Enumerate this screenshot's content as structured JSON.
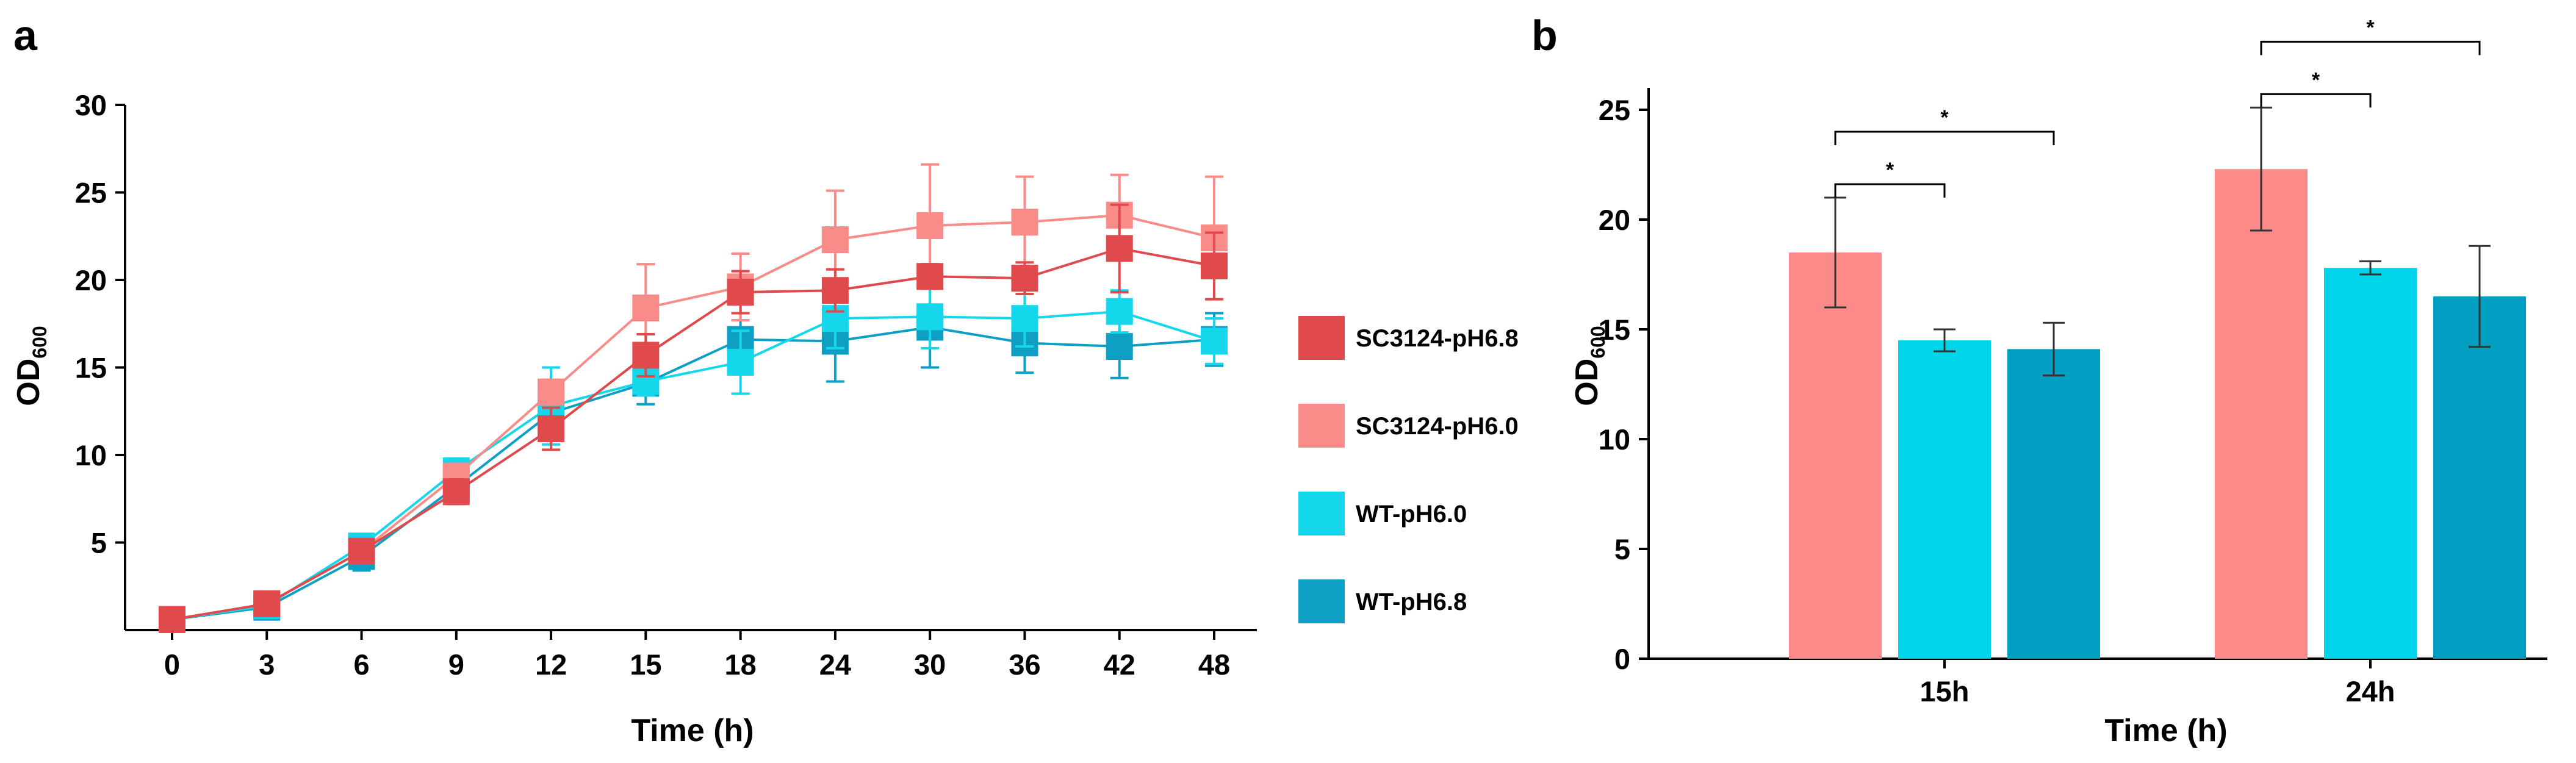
{
  "panels": {
    "a": "a",
    "b": "b"
  },
  "ylabel_main": "OD",
  "ylabel_sub": "600",
  "chart_data": [
    {
      "type": "line",
      "xlabel": "Time (h)",
      "ylabel": "OD600",
      "categories": [
        "0",
        "3",
        "6",
        "9",
        "12",
        "15",
        "18",
        "24",
        "30",
        "36",
        "42",
        "48"
      ],
      "yticks": [
        "5",
        "10",
        "15",
        "20",
        "25",
        "30"
      ],
      "ylim": [
        0,
        30
      ],
      "legend_position": "right",
      "series": [
        {
          "name": "WT-pH6.8",
          "color": "#0e9fc4",
          "values": [
            0.6,
            1.3,
            4.2,
            8.2,
            12.4,
            14.1,
            16.6,
            16.5,
            17.3,
            16.4,
            16.2,
            16.6
          ],
          "errors": [
            0.2,
            0.3,
            0.8,
            0.8,
            0.8,
            1.2,
            2.0,
            2.3,
            2.3,
            1.7,
            1.8,
            1.5
          ]
        },
        {
          "name": "WT-pH6.0",
          "color": "#14d7ec",
          "values": [
            0.6,
            1.4,
            4.8,
            9.1,
            12.8,
            14.2,
            15.3,
            17.8,
            17.9,
            17.8,
            18.2,
            16.5
          ],
          "errors": [
            0.2,
            0.3,
            0.6,
            0.7,
            2.2,
            0.8,
            1.8,
            1.7,
            1.8,
            1.6,
            1.2,
            1.3
          ]
        },
        {
          "name": "SC3124-pH6.0",
          "color": "#f98b89",
          "values": [
            0.6,
            1.5,
            4.5,
            8.8,
            13.6,
            18.4,
            19.6,
            22.3,
            23.1,
            23.3,
            23.7,
            22.4
          ],
          "errors": [
            0.2,
            0.3,
            0.5,
            0.6,
            0.7,
            2.5,
            1.9,
            2.8,
            3.5,
            2.6,
            2.3,
            3.5
          ]
        },
        {
          "name": "SC3124-pH6.8",
          "color": "#e04a4c",
          "values": [
            0.6,
            1.5,
            4.5,
            7.9,
            11.5,
            15.7,
            19.3,
            19.4,
            20.2,
            20.1,
            21.8,
            20.8
          ],
          "errors": [
            0.2,
            0.3,
            0.6,
            0.7,
            1.2,
            1.2,
            1.2,
            1.2,
            0.7,
            0.9,
            2.5,
            1.9
          ]
        }
      ],
      "legend_order": [
        "SC3124-pH6.8",
        "SC3124-pH6.0",
        "WT-pH6.0",
        "WT-pH6.8"
      ]
    },
    {
      "type": "bar",
      "xlabel": "Time (h)",
      "ylabel": "OD600",
      "categories": [
        "15h",
        "24h"
      ],
      "yticks": [
        "0",
        "5",
        "10",
        "15",
        "20",
        "25"
      ],
      "ylim": [
        0,
        26
      ],
      "series": [
        {
          "color": "#fb8a88",
          "values": [
            18.5,
            22.3
          ],
          "errors": [
            2.5,
            2.8
          ]
        },
        {
          "color": "#00d4e8",
          "values": [
            14.5,
            17.8
          ],
          "errors": [
            0.5,
            0.3
          ]
        },
        {
          "color": "#009ec1",
          "values": [
            14.1,
            16.5
          ],
          "errors": [
            1.2,
            2.3
          ]
        }
      ],
      "significance": [
        {
          "category": 0,
          "from": 0,
          "to": 1,
          "label": "*"
        },
        {
          "category": 0,
          "from": 0,
          "to": 2,
          "label": "*"
        },
        {
          "category": 1,
          "from": 0,
          "to": 1,
          "label": "*"
        },
        {
          "category": 1,
          "from": 0,
          "to": 2,
          "label": "*"
        }
      ]
    }
  ]
}
